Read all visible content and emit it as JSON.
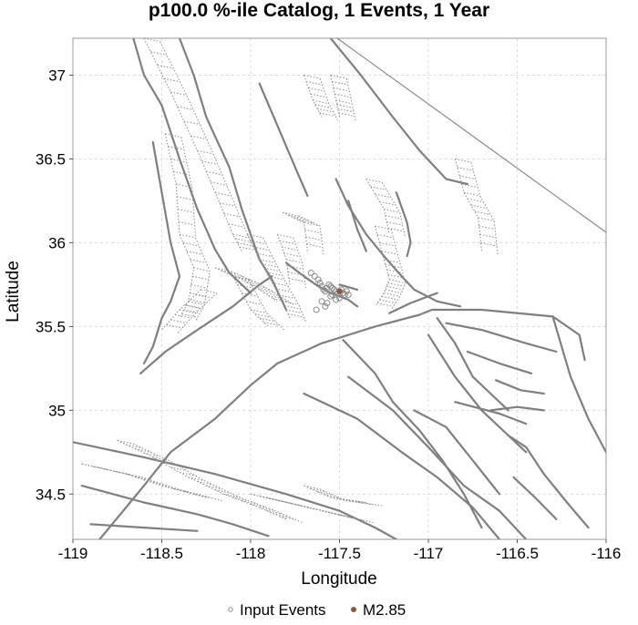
{
  "chart_data": {
    "type": "scatter",
    "title": "p100.0 %-ile Catalog, 1 Events, 1 Year",
    "xlabel": "Longitude",
    "ylabel": "Latitude",
    "xlim": [
      -119,
      -116
    ],
    "ylim": [
      34.23,
      37.22
    ],
    "xticks": [
      -119,
      -118.5,
      -118,
      -117.5,
      -117,
      -116.5,
      -116
    ],
    "xtick_labels": [
      "-119",
      "-118.5",
      "-118",
      "-117.5",
      "-117",
      "-116.5",
      "-116"
    ],
    "yticks": [
      34.5,
      35,
      35.5,
      36,
      36.5,
      37
    ],
    "ytick_labels": [
      "34.5",
      "35",
      "35.5",
      "36",
      "36.5",
      "37"
    ],
    "grid": true,
    "legend_position": "bottom-center",
    "colors": {
      "fault": "#7f7f7f",
      "input_events": "#8a8a8a",
      "event": "#8b5a3c"
    },
    "series": [
      {
        "name": "Input Events",
        "marker": "open-circle",
        "color": "#8a8a8a",
        "x": [
          -117.66,
          -117.64,
          -117.62,
          -117.61,
          -117.6,
          -117.59,
          -117.58,
          -117.57,
          -117.56,
          -117.55,
          -117.54,
          -117.53,
          -117.52,
          -117.51,
          -117.5,
          -117.49,
          -117.48,
          -117.47,
          -117.46,
          -117.45,
          -117.55,
          -117.6,
          -117.58,
          -117.52,
          -117.5,
          -117.63,
          -117.57,
          -117.54
        ],
        "y": [
          35.82,
          35.8,
          35.78,
          35.76,
          35.74,
          35.72,
          35.71,
          35.73,
          35.75,
          35.74,
          35.73,
          35.72,
          35.71,
          35.7,
          35.71,
          35.72,
          35.7,
          35.69,
          35.71,
          35.69,
          35.68,
          35.65,
          35.62,
          35.66,
          35.67,
          35.6,
          35.64,
          35.69
        ]
      },
      {
        "name": "M2.85",
        "marker": "filled-circle",
        "color": "#8b5a3c",
        "x": [
          -117.5
        ],
        "y": [
          35.71
        ]
      }
    ],
    "faults": [
      [
        [
          -118.66,
          37.22
        ],
        [
          -118.6,
          37.0
        ],
        [
          -118.5,
          36.82
        ],
        [
          -118.4,
          36.5
        ],
        [
          -118.3,
          36.2
        ],
        [
          -118.2,
          35.96
        ],
        [
          -118.12,
          35.82
        ],
        [
          -118.0,
          35.7
        ]
      ],
      [
        [
          -118.4,
          37.22
        ],
        [
          -118.32,
          37.0
        ],
        [
          -118.25,
          36.75
        ],
        [
          -118.12,
          36.45
        ],
        [
          -118.05,
          36.2
        ],
        [
          -118.0,
          36.05
        ],
        [
          -117.95,
          35.9
        ],
        [
          -117.88,
          35.78
        ],
        [
          -117.8,
          35.6
        ]
      ],
      [
        [
          -117.95,
          36.95
        ],
        [
          -117.85,
          36.7
        ],
        [
          -117.75,
          36.45
        ],
        [
          -117.68,
          36.28
        ]
      ],
      [
        [
          -117.55,
          37.22
        ],
        [
          -117.38,
          37.0
        ],
        [
          -117.2,
          36.75
        ],
        [
          -117.05,
          36.55
        ],
        [
          -116.9,
          36.38
        ],
        [
          -116.78,
          36.35
        ]
      ],
      [
        [
          -117.52,
          36.38
        ],
        [
          -117.45,
          36.22
        ],
        [
          -117.35,
          36.05
        ],
        [
          -117.25,
          35.92
        ],
        [
          -117.15,
          35.8
        ],
        [
          -117.08,
          35.72
        ],
        [
          -116.95,
          35.65
        ],
        [
          -116.82,
          35.62
        ]
      ],
      [
        [
          -117.18,
          36.3
        ],
        [
          -117.12,
          36.12
        ],
        [
          -117.1,
          36.0
        ],
        [
          -117.12,
          35.92
        ]
      ],
      [
        [
          -117.45,
          36.25
        ],
        [
          -117.4,
          36.08
        ],
        [
          -117.35,
          35.95
        ]
      ],
      [
        [
          -119.0,
          34.81
        ],
        [
          -118.6,
          34.72
        ],
        [
          -118.2,
          34.62
        ],
        [
          -117.8,
          34.5
        ],
        [
          -117.5,
          34.4
        ],
        [
          -117.3,
          34.3
        ],
        [
          -117.18,
          34.23
        ]
      ],
      [
        [
          -118.85,
          34.23
        ],
        [
          -118.6,
          34.55
        ],
        [
          -118.45,
          34.75
        ],
        [
          -118.2,
          34.95
        ],
        [
          -118.0,
          35.15
        ],
        [
          -117.85,
          35.28
        ],
        [
          -117.6,
          35.4
        ],
        [
          -117.3,
          35.5
        ],
        [
          -117.05,
          35.57
        ],
        [
          -116.98,
          35.6
        ],
        [
          -116.7,
          35.6
        ],
        [
          -116.3,
          35.56
        ],
        [
          -116.15,
          35.45
        ],
        [
          -116.12,
          35.3
        ]
      ],
      [
        [
          -116.3,
          35.56
        ],
        [
          -116.2,
          35.2
        ],
        [
          -116.1,
          34.95
        ],
        [
          -116.0,
          34.75
        ]
      ],
      [
        [
          -117.7,
          35.1
        ],
        [
          -117.4,
          34.95
        ],
        [
          -117.15,
          34.75
        ],
        [
          -116.95,
          34.6
        ],
        [
          -116.75,
          34.42
        ],
        [
          -116.6,
          34.23
        ]
      ],
      [
        [
          -117.45,
          35.2
        ],
        [
          -117.2,
          35.0
        ],
        [
          -117.0,
          34.78
        ],
        [
          -116.8,
          34.55
        ],
        [
          -116.6,
          34.4
        ],
        [
          -116.45,
          34.23
        ]
      ],
      [
        [
          -117.48,
          35.42
        ],
        [
          -117.3,
          35.22
        ],
        [
          -117.2,
          35.05
        ],
        [
          -117.05,
          34.88
        ],
        [
          -116.92,
          34.7
        ],
        [
          -116.8,
          34.5
        ],
        [
          -116.7,
          34.3
        ]
      ],
      [
        [
          -117.08,
          35.0
        ],
        [
          -116.9,
          34.9
        ],
        [
          -116.75,
          34.7
        ],
        [
          -116.6,
          34.5
        ]
      ],
      [
        [
          -117.0,
          35.45
        ],
        [
          -116.85,
          35.2
        ],
        [
          -116.7,
          35.0
        ],
        [
          -116.55,
          34.85
        ],
        [
          -116.45,
          34.75
        ]
      ],
      [
        [
          -116.95,
          35.55
        ],
        [
          -116.85,
          35.4
        ],
        [
          -116.75,
          35.2
        ],
        [
          -116.65,
          35.1
        ],
        [
          -116.55,
          35.0
        ]
      ],
      [
        [
          -116.9,
          35.52
        ],
        [
          -116.7,
          35.48
        ],
        [
          -116.45,
          35.4
        ],
        [
          -116.28,
          35.35
        ]
      ],
      [
        [
          -116.78,
          35.35
        ],
        [
          -116.6,
          35.28
        ],
        [
          -116.42,
          35.22
        ]
      ],
      [
        [
          -116.62,
          35.18
        ],
        [
          -116.48,
          35.12
        ],
        [
          -116.35,
          35.1
        ]
      ],
      [
        [
          -116.65,
          35.0
        ],
        [
          -116.5,
          35.02
        ],
        [
          -116.35,
          35.0
        ]
      ],
      [
        [
          -116.55,
          34.85
        ],
        [
          -116.45,
          34.78
        ],
        [
          -116.35,
          34.62
        ],
        [
          -116.22,
          34.45
        ],
        [
          -116.1,
          34.3
        ]
      ],
      [
        [
          -116.85,
          35.05
        ],
        [
          -116.6,
          34.98
        ],
        [
          -116.45,
          34.92
        ]
      ],
      [
        [
          -117.22,
          35.58
        ],
        [
          -117.1,
          35.64
        ],
        [
          -116.95,
          35.7
        ]
      ],
      [
        [
          -116.52,
          34.6
        ],
        [
          -116.4,
          34.48
        ],
        [
          -116.28,
          34.35
        ]
      ],
      [
        [
          -118.55,
          36.6
        ],
        [
          -118.5,
          36.3
        ],
        [
          -118.45,
          36.0
        ],
        [
          -118.4,
          35.8
        ],
        [
          -118.45,
          35.65
        ],
        [
          -118.5,
          35.55
        ],
        [
          -118.55,
          35.38
        ],
        [
          -118.6,
          35.28
        ]
      ],
      [
        [
          -118.62,
          35.22
        ],
        [
          -118.48,
          35.35
        ],
        [
          -118.3,
          35.48
        ],
        [
          -118.1,
          35.62
        ],
        [
          -117.95,
          35.75
        ],
        [
          -117.88,
          35.8
        ]
      ],
      [
        [
          -117.8,
          35.88
        ],
        [
          -117.7,
          35.8
        ],
        [
          -117.62,
          35.74
        ],
        [
          -117.55,
          35.7
        ],
        [
          -117.45,
          35.66
        ],
        [
          -117.4,
          35.62
        ]
      ],
      [
        [
          -117.5,
          35.75
        ],
        [
          -117.4,
          35.72
        ]
      ],
      [
        [
          -118.95,
          34.55
        ],
        [
          -118.6,
          34.45
        ],
        [
          -118.3,
          34.38
        ],
        [
          -118.1,
          34.32
        ],
        [
          -117.9,
          34.25
        ]
      ],
      [
        [
          -118.9,
          34.32
        ],
        [
          -118.6,
          34.3
        ],
        [
          -118.3,
          34.28
        ]
      ]
    ],
    "fault_planes": [
      [
        [
          -118.6,
          37.22
        ],
        [
          -118.45,
          36.9
        ],
        [
          -118.3,
          36.55
        ],
        [
          -118.2,
          36.3
        ],
        [
          -118.1,
          36.05
        ],
        [
          -118.05,
          35.95
        ]
      ],
      [
        [
          -118.48,
          36.65
        ],
        [
          -118.42,
          36.35
        ],
        [
          -118.4,
          36.05
        ],
        [
          -118.32,
          35.85
        ],
        [
          -118.35,
          35.65
        ],
        [
          -118.4,
          35.55
        ]
      ],
      [
        [
          -118.2,
          35.85
        ],
        [
          -118.05,
          35.78
        ],
        [
          -117.95,
          35.72
        ],
        [
          -117.85,
          35.65
        ]
      ],
      [
        [
          -118.02,
          36.05
        ],
        [
          -117.95,
          35.9
        ],
        [
          -117.9,
          35.8
        ],
        [
          -117.82,
          35.65
        ],
        [
          -117.78,
          35.55
        ]
      ],
      [
        [
          -117.85,
          36.05
        ],
        [
          -117.8,
          35.9
        ],
        [
          -117.78,
          35.75
        ]
      ],
      [
        [
          -117.82,
          36.18
        ],
        [
          -117.7,
          36.12
        ],
        [
          -117.68,
          35.95
        ]
      ],
      [
        [
          -117.3,
          36.1
        ],
        [
          -117.25,
          35.9
        ],
        [
          -117.22,
          35.78
        ],
        [
          -117.25,
          35.7
        ],
        [
          -117.3,
          35.62
        ]
      ],
      [
        [
          -117.35,
          36.38
        ],
        [
          -117.25,
          36.2
        ],
        [
          -117.22,
          36.05
        ]
      ],
      [
        [
          -117.55,
          37.0
        ],
        [
          -117.52,
          36.85
        ],
        [
          -117.5,
          36.75
        ]
      ],
      [
        [
          -117.7,
          37.0
        ],
        [
          -117.65,
          36.85
        ],
        [
          -117.6,
          36.75
        ]
      ],
      [
        [
          -116.85,
          36.5
        ],
        [
          -116.8,
          36.3
        ],
        [
          -116.72,
          36.15
        ],
        [
          -116.7,
          35.95
        ]
      ],
      [
        [
          -118.75,
          34.82
        ],
        [
          -118.55,
          34.72
        ],
        [
          -118.35,
          34.6
        ],
        [
          -118.15,
          34.5
        ],
        [
          -117.95,
          34.42
        ],
        [
          -117.8,
          34.35
        ]
      ],
      [
        [
          -118.95,
          34.68
        ],
        [
          -118.7,
          34.62
        ],
        [
          -118.5,
          34.55
        ],
        [
          -118.25,
          34.48
        ]
      ],
      [
        [
          -118.1,
          35.8
        ],
        [
          -118.0,
          35.6
        ],
        [
          -117.9,
          35.5
        ]
      ],
      [
        [
          -118.28,
          35.72
        ],
        [
          -118.4,
          35.6
        ],
        [
          -118.5,
          35.48
        ]
      ],
      [
        [
          -118.0,
          34.5
        ],
        [
          -117.8,
          34.45
        ],
        [
          -117.6,
          34.4
        ],
        [
          -117.4,
          34.35
        ]
      ],
      [
        [
          -117.7,
          34.55
        ],
        [
          -117.55,
          34.48
        ],
        [
          -117.35,
          34.45
        ]
      ]
    ]
  },
  "legend": {
    "items": [
      {
        "label": "Input Events",
        "marker": "open-circle",
        "color": "#8a8a8a"
      },
      {
        "label": "M2.85",
        "marker": "filled-circle",
        "color": "#8b5a3c"
      }
    ]
  }
}
